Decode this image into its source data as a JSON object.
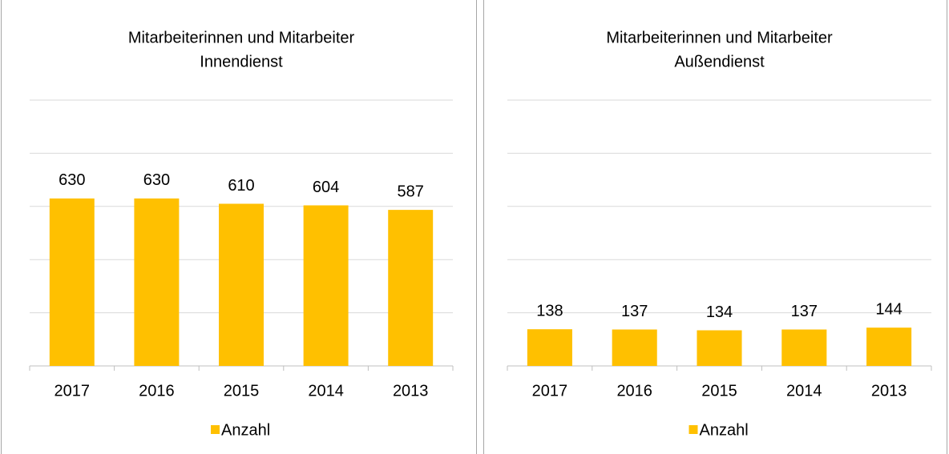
{
  "chart_data": [
    {
      "type": "bar",
      "title": [
        "Mitarbeiterinnen und Mitarbeiter",
        "Innendienst"
      ],
      "categories": [
        "2017",
        "2016",
        "2015",
        "2014",
        "2013"
      ],
      "series": [
        {
          "name": "Anzahl",
          "color": "#FFC000",
          "values": [
            630,
            630,
            610,
            604,
            587
          ]
        }
      ],
      "ylim": [
        0,
        1000
      ],
      "yticks": [
        0,
        200,
        400,
        600,
        800,
        1000
      ],
      "grid": true,
      "legend": "bottom"
    },
    {
      "type": "bar",
      "title": [
        "Mitarbeiterinnen und Mitarbeiter",
        "Außendienst"
      ],
      "categories": [
        "2017",
        "2016",
        "2015",
        "2014",
        "2013"
      ],
      "series": [
        {
          "name": "Anzahl",
          "color": "#FFC000",
          "values": [
            138,
            137,
            134,
            137,
            144
          ]
        }
      ],
      "ylim": [
        0,
        1000
      ],
      "yticks": [
        0,
        200,
        400,
        600,
        800,
        1000
      ],
      "grid": true,
      "legend": "bottom"
    }
  ]
}
